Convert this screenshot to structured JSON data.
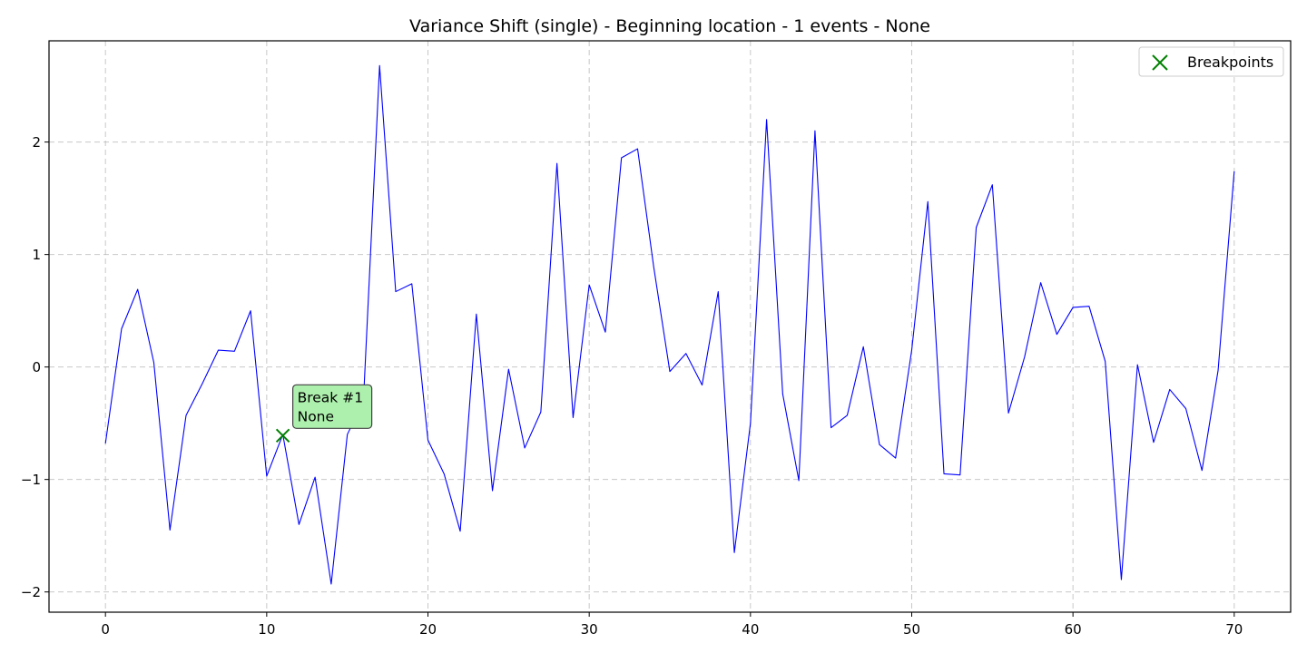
{
  "chart_data": {
    "type": "line",
    "title": "Variance Shift (single) - Beginning location - 1 events - None",
    "xlabel": "",
    "ylabel": "",
    "xlim": [
      -3.5,
      73.5
    ],
    "ylim": [
      -2.18,
      2.9
    ],
    "x_ticks": [
      0,
      10,
      20,
      30,
      40,
      50,
      60,
      70
    ],
    "y_ticks": [
      -2,
      -1,
      0,
      1,
      2
    ],
    "y_tick_labels": [
      "−2",
      "−1",
      "0",
      "1",
      "2"
    ],
    "grid": true,
    "legend_placement": "top-right",
    "series": [
      {
        "color": "#0000ff",
        "x": [
          0,
          1,
          2,
          3,
          4,
          5,
          6,
          7,
          8,
          9,
          10,
          11,
          12,
          13,
          14,
          15,
          16,
          17,
          18,
          19,
          20,
          21,
          22,
          23,
          24,
          25,
          26,
          27,
          28,
          29,
          30,
          31,
          32,
          33,
          34,
          35,
          36,
          37,
          38,
          39,
          40,
          41,
          42,
          43,
          44,
          45,
          46,
          47,
          48,
          49,
          50,
          51,
          52,
          53,
          54,
          55,
          56,
          57,
          58,
          59,
          60,
          61,
          62,
          63,
          64,
          65,
          66,
          67,
          68,
          69,
          70
        ],
        "values": [
          -0.68,
          0.34,
          0.69,
          0.04,
          -1.45,
          -0.43,
          -0.15,
          0.15,
          0.14,
          0.5,
          -0.97,
          -0.6,
          -1.4,
          -0.98,
          -1.93,
          -0.6,
          -0.3,
          2.68,
          0.67,
          0.74,
          -0.65,
          -0.95,
          -1.46,
          0.47,
          -1.1,
          -0.02,
          -0.72,
          -0.4,
          1.81,
          -0.45,
          0.73,
          0.31,
          1.86,
          1.94,
          0.89,
          -0.04,
          0.12,
          -0.16,
          0.67,
          -1.65,
          -0.5,
          2.2,
          -0.24,
          -1.01,
          2.1,
          -0.54,
          -0.43,
          0.18,
          -0.69,
          -0.81,
          0.15,
          1.47,
          -0.95,
          -0.96,
          1.24,
          1.62,
          -0.41,
          0.09,
          0.75,
          0.29,
          0.53,
          0.54,
          0.05,
          -1.89,
          0.02,
          -0.67,
          -0.2,
          -0.37,
          -0.92,
          -0.03,
          1.74
        ]
      }
    ],
    "breakpoints": {
      "name": "Breakpoints",
      "color": "#008000",
      "points": [
        {
          "x": 11,
          "y": -0.61,
          "annotation": [
            "Break #1",
            "None"
          ]
        }
      ]
    },
    "annotation_style": {
      "fill": "#adf0ad",
      "stroke": "#404040"
    }
  }
}
